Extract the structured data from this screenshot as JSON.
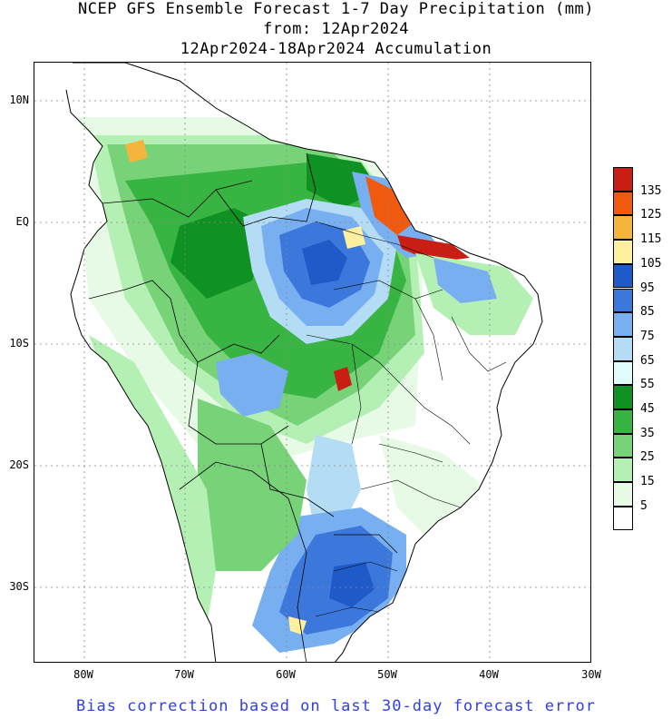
{
  "title": {
    "line1": "NCEP GFS Ensemble Forecast 1-7 Day Precipitation (mm)",
    "line2": "from: 12Apr2024",
    "line3": "12Apr2024-18Apr2024 Accumulation"
  },
  "axes": {
    "lat_labels": [
      "10N",
      "EQ",
      "10S",
      "20S",
      "30S"
    ],
    "lon_labels": [
      "80W",
      "70W",
      "60W",
      "50W",
      "40W",
      "30W"
    ]
  },
  "legend": {
    "labels": [
      "135",
      "125",
      "115",
      "105",
      "95",
      "85",
      "75",
      "65",
      "55",
      "45",
      "35",
      "25",
      "15",
      "5"
    ],
    "colors": [
      "#c81e14",
      "#f05a0f",
      "#f5b43c",
      "#fff0a0",
      "#1e5ac8",
      "#3c78dc",
      "#78aff0",
      "#b4dcf5",
      "#e1fafa",
      "#0f9123",
      "#37b441",
      "#78d278",
      "#b4f0b4",
      "#e6fae6",
      "#ffffff"
    ]
  },
  "footer": "Bias correction based on last 30-day forecast error"
}
